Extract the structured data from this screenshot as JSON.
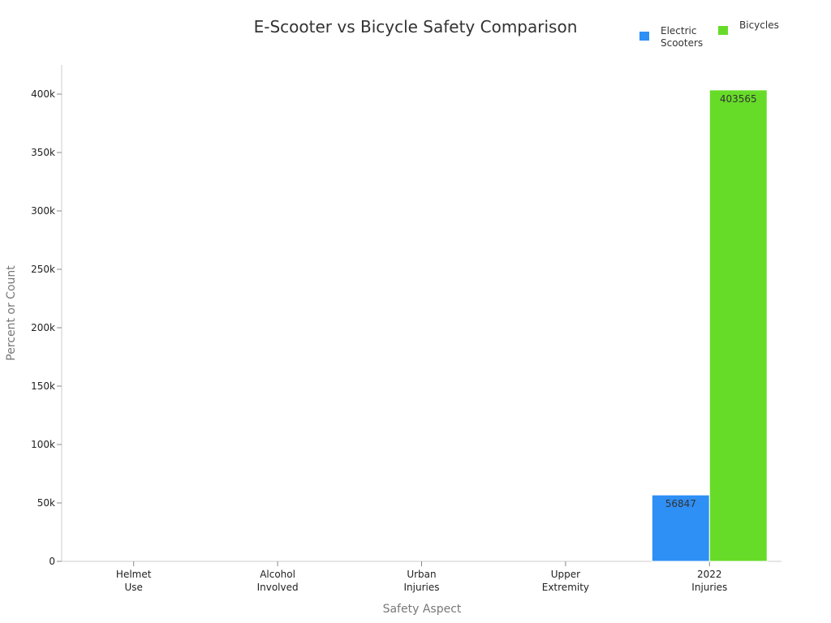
{
  "chart_data": {
    "type": "bar",
    "title": "E-Scooter vs Bicycle Safety Comparison",
    "xlabel": "Safety Aspect",
    "ylabel": "Percent or Count",
    "categories": [
      [
        "Helmet",
        "Use"
      ],
      [
        "Alcohol",
        "Involved"
      ],
      [
        "Urban",
        "Injuries"
      ],
      [
        "Upper",
        "Extremity"
      ],
      [
        "2022",
        "Injuries"
      ]
    ],
    "series": [
      {
        "name": [
          "Electric",
          "Scooters"
        ],
        "color": "#2e8ff5",
        "values": [
          null,
          null,
          null,
          null,
          56847
        ]
      },
      {
        "name": [
          "Bicycles"
        ],
        "color": "#67dc28",
        "values": [
          null,
          null,
          null,
          null,
          403565
        ]
      }
    ],
    "ylim": [
      0,
      425000
    ],
    "yticks": [
      0,
      50000,
      100000,
      150000,
      200000,
      250000,
      300000,
      350000,
      400000
    ],
    "ytick_labels": [
      "0",
      "50k",
      "100k",
      "150k",
      "200k",
      "250k",
      "300k",
      "350k",
      "400k"
    ],
    "data_labels": [
      "56847",
      "403565"
    ],
    "legend_position": "top-right",
    "grid": false
  }
}
